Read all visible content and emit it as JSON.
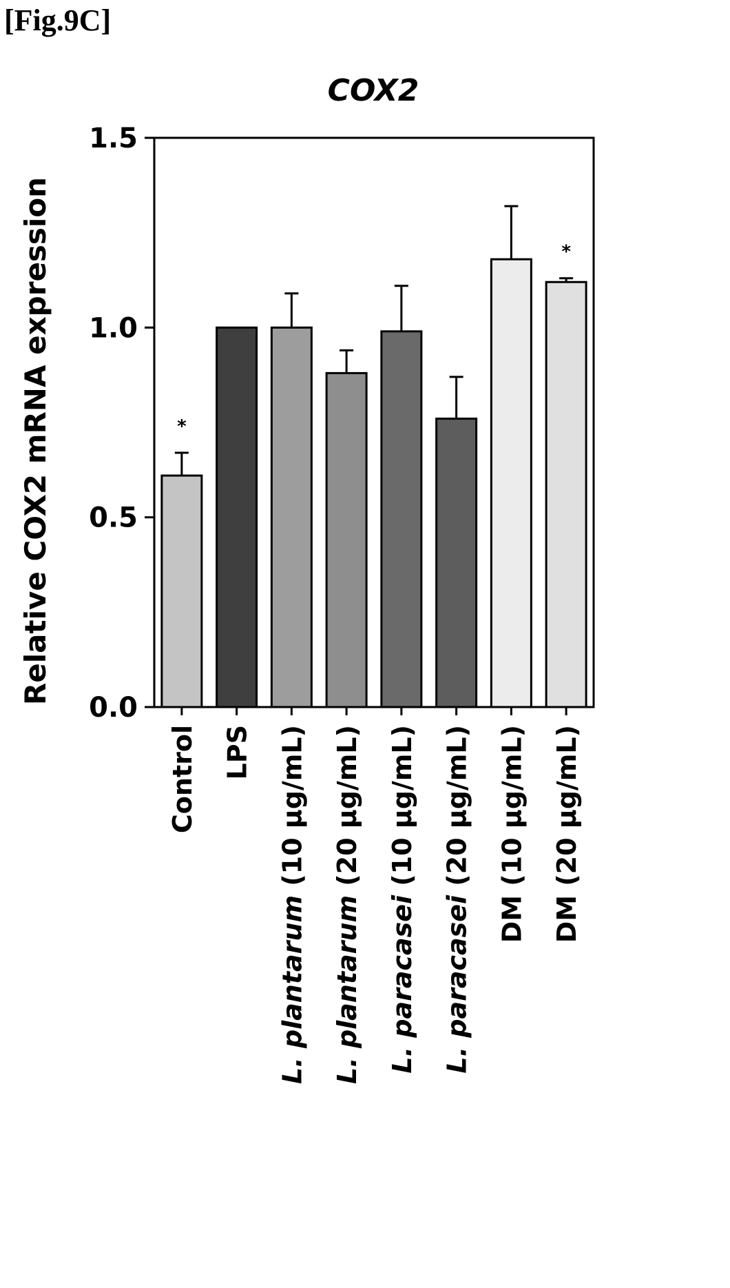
{
  "figure_label": "[Fig.9C]",
  "chart_data": {
    "type": "bar",
    "title": "COX2",
    "ylabel": "Relative COX2 mRNA expression",
    "xlabel": "",
    "ylim": [
      0,
      1.5
    ],
    "yticks": [
      "0.0",
      "0.5",
      "1.0",
      "1.5"
    ],
    "grid": false,
    "categories": [
      {
        "prefix": "",
        "italic": "",
        "suffix": "Control"
      },
      {
        "prefix": "",
        "italic": "",
        "suffix": "LPS"
      },
      {
        "prefix": "",
        "italic": "L. plantarum",
        "suffix": " (10 μg/mL)"
      },
      {
        "prefix": "",
        "italic": "L. plantarum",
        "suffix": " (20 μg/mL)"
      },
      {
        "prefix": "",
        "italic": "L. paracasei",
        "suffix": " (10 μg/mL)"
      },
      {
        "prefix": "",
        "italic": "L. paracasei",
        "suffix": " (20 μg/mL)"
      },
      {
        "prefix": "",
        "italic": "",
        "suffix": "DM (10 μg/mL)"
      },
      {
        "prefix": "",
        "italic": "",
        "suffix": "DM (20 μg/mL)"
      }
    ],
    "values": [
      0.61,
      1.0,
      1.0,
      0.88,
      0.99,
      0.76,
      1.18,
      1.12
    ],
    "errors": [
      0.06,
      0.0,
      0.09,
      0.06,
      0.12,
      0.11,
      0.14,
      0.01
    ],
    "significance": [
      "*",
      "",
      "",
      "",
      "",
      "",
      "",
      "*"
    ],
    "bar_colors": [
      "#c4c4c4",
      "#3f3f3f",
      "#9d9d9d",
      "#8e8e8e",
      "#6a6a6a",
      "#5d5d5d",
      "#ececec",
      "#e0e0e0"
    ]
  }
}
